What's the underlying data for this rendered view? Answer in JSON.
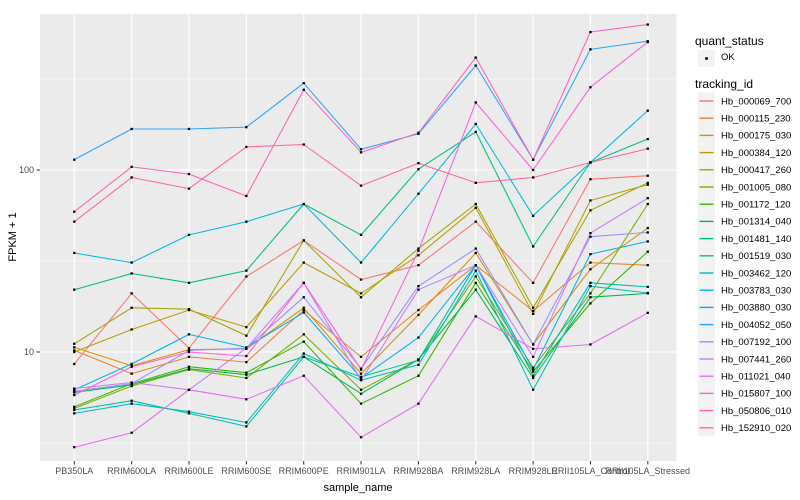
{
  "figure": {
    "x_axis": {
      "title": "sample_name"
    },
    "y_axis": {
      "title": "FPKM + 1",
      "tick_labels": [
        "100",
        "10"
      ],
      "tick_values": [
        100,
        10
      ]
    },
    "legend": {
      "quant_status": {
        "title": "quant_status",
        "items": [
          {
            "label": "OK",
            "marker_color": "#000000"
          }
        ]
      },
      "tracking_id": {
        "title": "tracking_id"
      }
    }
  },
  "chart_data": {
    "type": "line",
    "title": "",
    "xlabel": "sample_name",
    "ylabel": "FPKM + 1",
    "x_scale": "categorical",
    "y_scale": "log10",
    "ylim": [
      2.5,
      720
    ],
    "y_major_gridlines": [
      10,
      100
    ],
    "y_minor_gridlines": [
      3.162,
      31.62,
      316.2
    ],
    "panel_bg": "#EBEBEB",
    "grid_color": "#FFFFFF",
    "legend_key_bg": "#F2F2F2",
    "point_color": "#000000",
    "tick_text_color": "#4D4D4D",
    "tick_mark_color": "#333333",
    "categories": [
      "PB350LA",
      "RRIM600LA",
      "RRIM600LE",
      "RRIM600SE",
      "RRIM600PE",
      "RRIM901LA",
      "RRIM928BA",
      "RRIM928LA",
      "RRIM928LE",
      "RRII105LA_Control",
      "RRII105LA_Stressed"
    ],
    "series": [
      {
        "name": "Hb_000069_700",
        "color": "#F8766D",
        "values": [
          8.6,
          21,
          10.5,
          26,
          41,
          25,
          30,
          52,
          24,
          89,
          93
        ]
      },
      {
        "name": "Hb_000115_230",
        "color": "#EA8331",
        "values": [
          10.2,
          7.6,
          9.4,
          8.8,
          17,
          9.4,
          17,
          30,
          16.8,
          31,
          30
        ]
      },
      {
        "name": "Hb_000175_030",
        "color": "#D89000",
        "values": [
          10.6,
          8.4,
          10.3,
          10.4,
          17.5,
          7.6,
          16,
          35,
          11,
          28.5,
          48
        ]
      },
      {
        "name": "Hb_000384_120",
        "color": "#C09B00",
        "values": [
          10.0,
          13.3,
          17,
          13.7,
          31,
          21,
          34,
          62,
          16.2,
          68,
          83
        ]
      },
      {
        "name": "Hb_000417_260",
        "color": "#A3A500",
        "values": [
          11.1,
          17.5,
          17.2,
          12.3,
          41,
          20,
          37,
          65,
          17.5,
          60,
          85
        ]
      },
      {
        "name": "Hb_001005_080",
        "color": "#7CAE00",
        "values": [
          4.9,
          6.5,
          8.0,
          7.2,
          12.5,
          6.2,
          9.1,
          26,
          8.2,
          21,
          65
        ]
      },
      {
        "name": "Hb_001172_120",
        "color": "#39B600",
        "values": [
          5.0,
          6.7,
          8.3,
          7.7,
          11.4,
          5.2,
          7.4,
          24,
          7.8,
          18.5,
          35.6
        ]
      },
      {
        "name": "Hb_001314_040",
        "color": "#00BB4E",
        "values": [
          6.0,
          6.6,
          8.1,
          7.5,
          9.4,
          5.9,
          9.1,
          22,
          7.2,
          20,
          21
        ]
      },
      {
        "name": "Hb_001481_140",
        "color": "#00BF7D",
        "values": [
          22,
          27,
          24,
          28,
          65,
          44,
          101,
          162,
          38,
          110,
          148
        ]
      },
      {
        "name": "Hb_001519_030",
        "color": "#00C1A3",
        "values": [
          4.8,
          5.4,
          4.6,
          3.9,
          9.4,
          7.3,
          9.0,
          30,
          7.4,
          24,
          22.8
        ]
      },
      {
        "name": "Hb_003462_120",
        "color": "#00BFC4",
        "values": [
          4.6,
          5.2,
          4.7,
          4.1,
          9.8,
          7.0,
          8.5,
          28,
          6.2,
          23,
          21.1
        ]
      },
      {
        "name": "Hb_003783_030",
        "color": "#00BADE",
        "values": [
          35,
          31,
          44,
          52,
          65,
          31,
          74,
          179,
          56,
          110,
          212
        ]
      },
      {
        "name": "Hb_003880_030",
        "color": "#00B0F6",
        "values": [
          6.2,
          8.6,
          12.5,
          10.6,
          16.5,
          7.2,
          12,
          30,
          8.0,
          34.5,
          40.5
        ]
      },
      {
        "name": "Hb_004052_050",
        "color": "#2CA3FF",
        "values": [
          114,
          168,
          168,
          172,
          300,
          130,
          158,
          375,
          114,
          460,
          510
        ]
      },
      {
        "name": "Hb_007192_100",
        "color": "#9590FF",
        "values": [
          6.1,
          6.7,
          10.2,
          10.5,
          20,
          8.1,
          23,
          37,
          11,
          43,
          45.4
        ]
      },
      {
        "name": "Hb_007441_260",
        "color": "#C77CFF",
        "values": [
          6.3,
          6.8,
          6.2,
          10.5,
          24,
          7.0,
          22,
          30,
          9.4,
          45,
          70
        ]
      },
      {
        "name": "Hb_011021_040",
        "color": "#E76BF3",
        "values": [
          3.0,
          3.6,
          6.2,
          5.5,
          7.4,
          3.4,
          5.2,
          15.7,
          10.4,
          11,
          16.4
        ]
      },
      {
        "name": "Hb_015807_100",
        "color": "#FA62DB",
        "values": [
          5.8,
          8.3,
          10,
          9.5,
          24,
          8.0,
          36,
          235,
          100,
          285,
          505
        ]
      },
      {
        "name": "Hb_050806_010",
        "color": "#FF62BC",
        "values": [
          59,
          104,
          95,
          72,
          276,
          125,
          160,
          415,
          114,
          573,
          630
        ]
      },
      {
        "name": "Hb_152910_020",
        "color": "#FF6A98",
        "values": [
          52,
          91,
          79,
          134,
          138,
          82,
          109,
          85,
          91,
          110,
          131
        ]
      }
    ],
    "legend_position": "right",
    "grid": true
  }
}
